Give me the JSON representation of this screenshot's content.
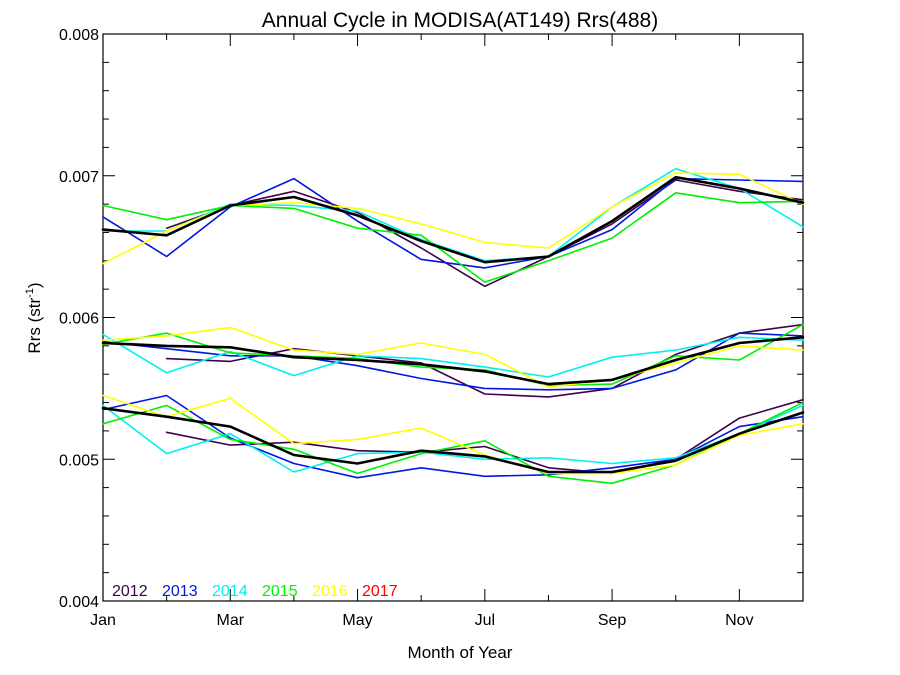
{
  "chart_data": {
    "type": "line",
    "title": "Annual Cycle in MODISA(AT149) Rrs(488)",
    "xlabel": "Month of Year",
    "ylabel": "Rrs (str",
    "ylabel_sup": "-1",
    "ylabel_close": ")",
    "xlim": [
      1,
      12
    ],
    "ylim": [
      0.004,
      0.008
    ],
    "x_ticks": [
      {
        "value": 1,
        "label": "Jan"
      },
      {
        "value": 3,
        "label": "Mar"
      },
      {
        "value": 5,
        "label": "May"
      },
      {
        "value": 7,
        "label": "Jul"
      },
      {
        "value": 9,
        "label": "Sep"
      },
      {
        "value": 11,
        "label": "Nov"
      }
    ],
    "y_ticks": [
      {
        "value": 0.004,
        "label": "0.004"
      },
      {
        "value": 0.005,
        "label": "0.005"
      },
      {
        "value": 0.006,
        "label": "0.006"
      },
      {
        "value": 0.007,
        "label": "0.007"
      },
      {
        "value": 0.008,
        "label": "0.008"
      }
    ],
    "legend_position": "bottom-left",
    "legend": [
      {
        "name": "2012",
        "color": "#3f0050"
      },
      {
        "name": "2013",
        "color": "#0018e0"
      },
      {
        "name": "2014",
        "color": "#00f0f0"
      },
      {
        "name": "2015",
        "color": "#00f000"
      },
      {
        "name": "2016",
        "color": "#ffff00"
      },
      {
        "name": "2017",
        "color": "#ff0000"
      }
    ],
    "x": [
      1,
      2,
      3,
      4,
      5,
      6,
      7,
      8,
      9,
      10,
      11,
      12
    ],
    "groups": [
      {
        "series": [
          {
            "name": "2012",
            "color": "#3f0050",
            "values": [
              null,
              0.00663,
              0.00679,
              0.00689,
              0.00674,
              0.00649,
              0.00622,
              0.00643,
              0.00666,
              0.00697,
              0.00689,
              0.00683
            ]
          },
          {
            "name": "2013",
            "color": "#0018e0",
            "values": [
              0.00671,
              0.00643,
              0.00678,
              0.00698,
              0.00668,
              0.00641,
              0.00635,
              0.00643,
              0.00662,
              0.00698,
              0.00697,
              0.00696
            ]
          },
          {
            "name": "2014",
            "color": "#00f0f0",
            "values": [
              0.00661,
              0.00661,
              0.0068,
              0.00679,
              0.00675,
              0.00655,
              0.0064,
              0.00643,
              0.00678,
              0.00705,
              0.00691,
              0.00664
            ]
          },
          {
            "name": "2015",
            "color": "#00f000",
            "values": [
              0.00679,
              0.00669,
              0.00679,
              0.00677,
              0.00663,
              0.00658,
              0.00625,
              0.0064,
              0.00656,
              0.00688,
              0.00681,
              0.00682
            ]
          },
          {
            "name": "2016",
            "color": "#ffff00",
            "values": [
              0.00638,
              0.00661,
              0.00679,
              0.00681,
              0.00677,
              0.00666,
              0.00653,
              0.00649,
              0.00678,
              0.00702,
              0.00701,
              0.0068
            ]
          },
          {
            "name": "mean",
            "color": "#000000",
            "values": [
              0.00662,
              0.00658,
              0.00679,
              0.00685,
              0.00672,
              0.00654,
              0.00639,
              0.00643,
              0.00668,
              0.00699,
              0.00691,
              0.00681
            ]
          }
        ]
      },
      {
        "series": [
          {
            "name": "2012",
            "color": "#3f0050",
            "values": [
              null,
              0.00571,
              0.00569,
              0.00578,
              0.00573,
              0.00568,
              0.00546,
              0.00544,
              0.0055,
              0.00574,
              0.00589,
              0.00595
            ]
          },
          {
            "name": "2013",
            "color": "#0018e0",
            "values": [
              0.00583,
              0.00578,
              0.00573,
              0.00573,
              0.00566,
              0.00557,
              0.0055,
              0.00549,
              0.0055,
              0.00563,
              0.00589,
              0.00587
            ]
          },
          {
            "name": "2014",
            "color": "#00f0f0",
            "values": [
              0.00588,
              0.00561,
              0.00576,
              0.00559,
              0.00573,
              0.00571,
              0.00565,
              0.00558,
              0.00572,
              0.00577,
              0.00586,
              0.00584
            ]
          },
          {
            "name": "2015",
            "color": "#00f000",
            "values": [
              0.00581,
              0.00589,
              0.00575,
              0.00573,
              0.00571,
              0.00565,
              0.00563,
              0.00552,
              0.00553,
              0.00573,
              0.0057,
              0.00595
            ]
          },
          {
            "name": "2016",
            "color": "#ffff00",
            "values": [
              0.00584,
              0.00587,
              0.00593,
              0.00577,
              0.00574,
              0.00582,
              0.00574,
              0.00551,
              0.00556,
              0.00568,
              0.0058,
              0.00577
            ]
          },
          {
            "name": "mean",
            "color": "#000000",
            "values": [
              0.00582,
              0.0058,
              0.00579,
              0.00572,
              0.0057,
              0.00567,
              0.00562,
              0.00553,
              0.00556,
              0.0057,
              0.00582,
              0.00586
            ]
          }
        ]
      },
      {
        "series": [
          {
            "name": "2012",
            "color": "#3f0050",
            "values": [
              null,
              0.00519,
              0.0051,
              0.00512,
              0.00506,
              0.00505,
              0.00509,
              0.00494,
              0.0049,
              0.005,
              0.00529,
              0.00542
            ]
          },
          {
            "name": "2013",
            "color": "#0018e0",
            "values": [
              0.00535,
              0.00545,
              0.00515,
              0.00497,
              0.00487,
              0.00494,
              0.00488,
              0.00489,
              0.00494,
              0.005,
              0.00523,
              0.0053
            ]
          },
          {
            "name": "2014",
            "color": "#00f0f0",
            "values": [
              0.00538,
              0.00504,
              0.00518,
              0.00491,
              0.00504,
              0.00505,
              0.005,
              0.00501,
              0.00497,
              0.00501,
              0.00518,
              0.00538
            ]
          },
          {
            "name": "2015",
            "color": "#00f000",
            "values": [
              0.00525,
              0.00538,
              0.00514,
              0.00507,
              0.0049,
              0.00504,
              0.00513,
              0.00488,
              0.00483,
              0.00496,
              0.00518,
              0.0054
            ]
          },
          {
            "name": "2016",
            "color": "#ffff00",
            "values": [
              0.00545,
              0.0053,
              0.00543,
              0.00511,
              0.00514,
              0.00522,
              0.00503,
              0.0049,
              0.0049,
              0.00496,
              0.00517,
              0.00525
            ]
          },
          {
            "name": "mean",
            "color": "#000000",
            "values": [
              0.00536,
              0.0053,
              0.00523,
              0.00503,
              0.00497,
              0.00506,
              0.00502,
              0.00491,
              0.00491,
              0.00499,
              0.00518,
              0.00533
            ]
          }
        ]
      }
    ]
  }
}
